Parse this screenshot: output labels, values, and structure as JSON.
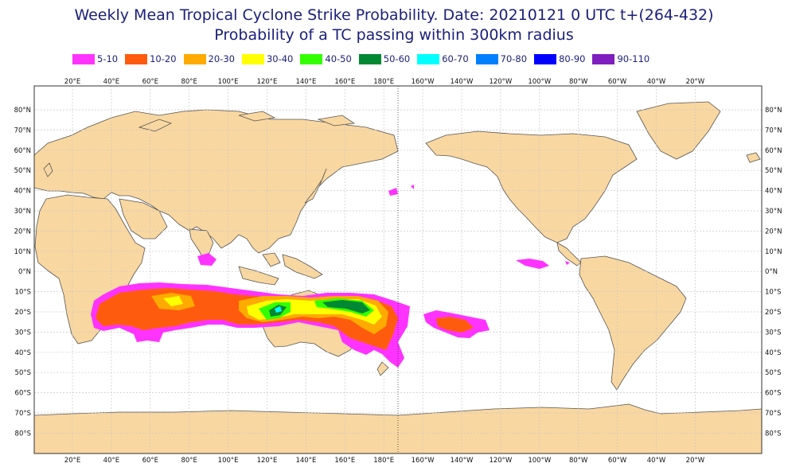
{
  "title_line1": "Weekly Mean Tropical Cyclone Strike Probability. Date: 20210121  0 UTC    t+(264-432)",
  "title_line2": "Probability of a TC passing within  300km radius",
  "legend": [
    {
      "label": "5-10",
      "color": "#ff33ff"
    },
    {
      "label": "10-20",
      "color": "#ff5b0f"
    },
    {
      "label": "20-30",
      "color": "#ffaa00"
    },
    {
      "label": "30-40",
      "color": "#ffff00"
    },
    {
      "label": "40-50",
      "color": "#33ff00"
    },
    {
      "label": "50-60",
      "color": "#008833"
    },
    {
      "label": "60-70",
      "color": "#00ffff"
    },
    {
      "label": "70-80",
      "color": "#0080ff"
    },
    {
      "label": "80-90",
      "color": "#0000ff"
    },
    {
      "label": "90-110",
      "color": "#7f1fbf"
    }
  ],
  "lon_labels": [
    "20°E",
    "40°E",
    "60°E",
    "80°E",
    "100°E",
    "120°E",
    "140°E",
    "160°E",
    "180°E",
    "160°W",
    "140°W",
    "120°W",
    "100°W",
    "80°W",
    "60°W",
    "40°W",
    "20°W"
  ],
  "lat_labels": [
    "80°N",
    "70°N",
    "60°N",
    "50°N",
    "40°N",
    "30°N",
    "20°N",
    "10°N",
    "0°N",
    "10°S",
    "20°S",
    "30°S",
    "40°S",
    "50°S",
    "60°S",
    "70°S",
    "80°S"
  ],
  "colors": {
    "land": "#f9d7a0",
    "coast": "#555555",
    "ocean": "#ffffff",
    "grid": "#c8c8c8",
    "title": "#1a1f7a"
  }
}
